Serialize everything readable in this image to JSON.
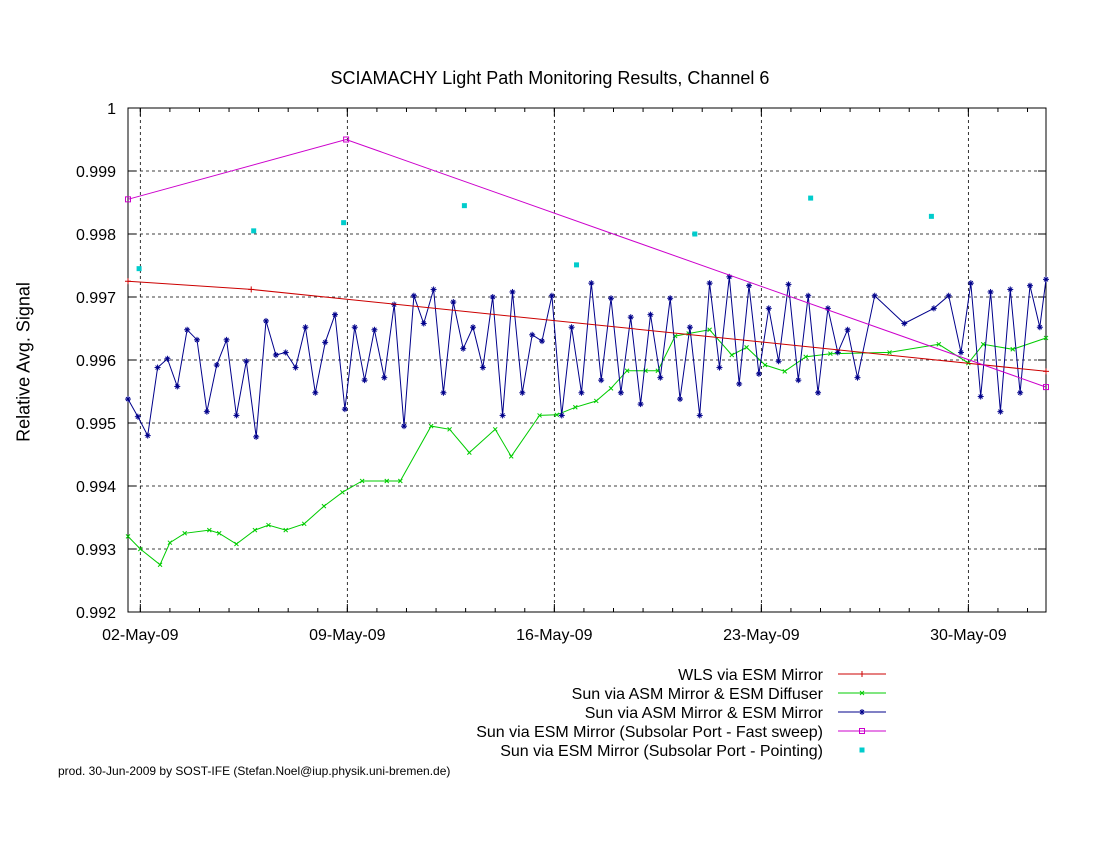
{
  "footer": "prod. 30-Jun-2009 by SOST-IFE (Stefan.Noel@iup.physik.uni-bremen.de)",
  "chart_data": {
    "type": "line",
    "title": "SCIAMACHY Light Path Monitoring Results, Channel 6",
    "xlabel": "",
    "ylabel": "Relative Avg. Signal",
    "xlim": [
      "2009-05-01T14:00",
      "2009-06-01T15:00"
    ],
    "ylim": [
      0.992,
      1.0
    ],
    "xticks": [
      {
        "date": "2009-05-02",
        "label": "02-May-09"
      },
      {
        "date": "2009-05-09",
        "label": "09-May-09"
      },
      {
        "date": "2009-05-16",
        "label": "16-May-09"
      },
      {
        "date": "2009-05-23",
        "label": "23-May-09"
      },
      {
        "date": "2009-05-30",
        "label": "30-May-09"
      }
    ],
    "yticks": [
      {
        "value": 0.992,
        "label": "0.992"
      },
      {
        "value": 0.993,
        "label": "0.993"
      },
      {
        "value": 0.994,
        "label": "0.994"
      },
      {
        "value": 0.995,
        "label": "0.995"
      },
      {
        "value": 0.996,
        "label": "0.996"
      },
      {
        "value": 0.997,
        "label": "0.997"
      },
      {
        "value": 0.998,
        "label": "0.998"
      },
      {
        "value": 0.999,
        "label": "0.999"
      },
      {
        "value": 1.0,
        "label": "1"
      }
    ],
    "grid": true,
    "legend_position": "bottom-right below plot",
    "series": [
      {
        "name": "WLS via ESM Mirror",
        "color": "#cc0000",
        "style": "line-plus",
        "x": [
          "2009-05-01T14:00",
          "2009-05-05T18:00",
          "2009-06-01T15:00"
        ],
        "y": [
          0.99725,
          0.99712,
          0.99582
        ]
      },
      {
        "name": "Sun via ASM Mirror & ESM Diffuser",
        "color": "#00cc00",
        "style": "line-x",
        "x": [
          "2009-05-01T14:00",
          "2009-05-02T00:00",
          "2009-05-02T16:00",
          "2009-05-03T00:00",
          "2009-05-03T12:00",
          "2009-05-04T08:00",
          "2009-05-04T16:00",
          "2009-05-05T06:00",
          "2009-05-05T21:00",
          "2009-05-06T08:00",
          "2009-05-06T22:00",
          "2009-05-07T13:00",
          "2009-05-08T05:00",
          "2009-05-08T20:00",
          "2009-05-09T12:00",
          "2009-05-10T08:00",
          "2009-05-10T19:00",
          "2009-05-11T20:00",
          "2009-05-12T11:00",
          "2009-05-13T03:00",
          "2009-05-14T00:00",
          "2009-05-14T13:00",
          "2009-05-15T12:00",
          "2009-05-16T02:00",
          "2009-05-16T17:00",
          "2009-05-17T10:00",
          "2009-05-17T22:00",
          "2009-05-18T11:00",
          "2009-05-19T02:00",
          "2009-05-19T12:00",
          "2009-05-20T02:00",
          "2009-05-20T13:00",
          "2009-05-21T06:00",
          "2009-05-22T00:00",
          "2009-05-22T12:00",
          "2009-05-23T03:00",
          "2009-05-23T19:00",
          "2009-05-24T12:00",
          "2009-05-25T08:00",
          "2009-05-27T08:00",
          "2009-05-29T00:00",
          "2009-05-30T00:00",
          "2009-05-30T12:00",
          "2009-05-31T12:00",
          "2009-06-01T15:00"
        ],
        "y": [
          0.9932,
          0.993,
          0.99275,
          0.9931,
          0.99325,
          0.9933,
          0.99325,
          0.99308,
          0.9933,
          0.99338,
          0.9933,
          0.9934,
          0.99368,
          0.9939,
          0.99408,
          0.99408,
          0.99408,
          0.99495,
          0.9949,
          0.99453,
          0.9949,
          0.99447,
          0.99512,
          0.99513,
          0.99525,
          0.99535,
          0.99555,
          0.99583,
          0.99583,
          0.99583,
          0.99638,
          0.99642,
          0.99648,
          0.99608,
          0.9962,
          0.99592,
          0.99582,
          0.99605,
          0.9961,
          0.99612,
          0.99625,
          0.99595,
          0.99625,
          0.99617,
          0.99635
        ]
      },
      {
        "name": "Sun via ASM Mirror & ESM Mirror",
        "color": "#00008b",
        "style": "line-star",
        "x": [
          "2009-05-01T14:00",
          "2009-05-01T22:00",
          "2009-05-02T06:00",
          "2009-05-02T14:00",
          "2009-05-02T22:00",
          "2009-05-03T06:00",
          "2009-05-03T14:00",
          "2009-05-03T22:00",
          "2009-05-04T06:00",
          "2009-05-04T14:00",
          "2009-05-04T22:00",
          "2009-05-05T06:00",
          "2009-05-05T14:00",
          "2009-05-05T22:00",
          "2009-05-06T06:00",
          "2009-05-06T14:00",
          "2009-05-06T22:00",
          "2009-05-07T06:00",
          "2009-05-07T14:00",
          "2009-05-07T22:00",
          "2009-05-08T06:00",
          "2009-05-08T14:00",
          "2009-05-08T22:00",
          "2009-05-09T06:00",
          "2009-05-09T14:00",
          "2009-05-09T22:00",
          "2009-05-10T06:00",
          "2009-05-10T14:00",
          "2009-05-10T22:00",
          "2009-05-11T06:00",
          "2009-05-11T14:00",
          "2009-05-11T22:00",
          "2009-05-12T06:00",
          "2009-05-12T14:00",
          "2009-05-12T22:00",
          "2009-05-13T06:00",
          "2009-05-13T14:00",
          "2009-05-13T22:00",
          "2009-05-14T06:00",
          "2009-05-14T14:00",
          "2009-05-14T22:00",
          "2009-05-15T06:00",
          "2009-05-15T14:00",
          "2009-05-15T22:00",
          "2009-05-16T06:00",
          "2009-05-16T14:00",
          "2009-05-16T22:00",
          "2009-05-17T06:00",
          "2009-05-17T14:00",
          "2009-05-17T22:00",
          "2009-05-18T06:00",
          "2009-05-18T14:00",
          "2009-05-18T22:00",
          "2009-05-19T06:00",
          "2009-05-19T14:00",
          "2009-05-19T22:00",
          "2009-05-20T06:00",
          "2009-05-20T14:00",
          "2009-05-20T22:00",
          "2009-05-21T06:00",
          "2009-05-21T14:00",
          "2009-05-21T22:00",
          "2009-05-22T06:00",
          "2009-05-22T14:00",
          "2009-05-22T22:00",
          "2009-05-23T06:00",
          "2009-05-23T14:00",
          "2009-05-23T22:00",
          "2009-05-24T06:00",
          "2009-05-24T14:00",
          "2009-05-24T22:00",
          "2009-05-25T06:00",
          "2009-05-25T14:00",
          "2009-05-25T22:00",
          "2009-05-26T06:00",
          "2009-05-26T20:00",
          "2009-05-27T20:00",
          "2009-05-28T20:00",
          "2009-05-29T08:00",
          "2009-05-29T18:00",
          "2009-05-30T02:00",
          "2009-05-30T10:00",
          "2009-05-30T18:00",
          "2009-05-31T02:00",
          "2009-05-31T10:00",
          "2009-05-31T18:00",
          "2009-06-01T02:00",
          "2009-06-01T10:00",
          "2009-06-01T15:00"
        ],
        "y": [
          0.99538,
          0.9951,
          0.9948,
          0.99588,
          0.99602,
          0.99558,
          0.99648,
          0.99632,
          0.99518,
          0.99592,
          0.99632,
          0.99512,
          0.99598,
          0.99478,
          0.99662,
          0.99608,
          0.99612,
          0.99588,
          0.99652,
          0.99548,
          0.99628,
          0.99672,
          0.99522,
          0.99652,
          0.99568,
          0.99648,
          0.99572,
          0.99688,
          0.99495,
          0.99702,
          0.99658,
          0.99712,
          0.99548,
          0.99692,
          0.99618,
          0.99652,
          0.99588,
          0.997,
          0.99512,
          0.99708,
          0.99548,
          0.9964,
          0.9963,
          0.99702,
          0.99512,
          0.99652,
          0.99548,
          0.99722,
          0.99568,
          0.99698,
          0.99548,
          0.99668,
          0.9953,
          0.99672,
          0.99572,
          0.99698,
          0.99538,
          0.99652,
          0.99512,
          0.99722,
          0.99588,
          0.99732,
          0.99562,
          0.99718,
          0.99578,
          0.99682,
          0.99598,
          0.9972,
          0.99568,
          0.99702,
          0.99548,
          0.99682,
          0.99612,
          0.99648,
          0.99572,
          0.99702,
          0.99658,
          0.99682,
          0.99702,
          0.99612,
          0.99722,
          0.99542,
          0.99708,
          0.99518,
          0.99712,
          0.99548,
          0.99718,
          0.99652,
          0.99728
        ]
      },
      {
        "name": "Sun via ESM Mirror (Subsolar Port - Fast sweep)",
        "color": "#cc00cc",
        "style": "line-square",
        "x": [
          "2009-05-01T14:00",
          "2009-05-08T23:00",
          "2009-06-01T15:00"
        ],
        "y": [
          0.99855,
          0.9995,
          0.99557
        ]
      },
      {
        "name": "Sun via ESM Mirror (Subsolar Port - Pointing)",
        "color": "#00cccc",
        "style": "points",
        "x": [
          "2009-05-01T23:00",
          "2009-05-05T20:00",
          "2009-05-08T21:00",
          "2009-05-12T23:00",
          "2009-05-16T18:00",
          "2009-05-20T18:00",
          "2009-05-24T16:00",
          "2009-05-28T18:00"
        ],
        "y": [
          0.99745,
          0.99805,
          0.99818,
          0.99845,
          0.99751,
          0.998,
          0.99857,
          0.99828
        ]
      }
    ]
  }
}
